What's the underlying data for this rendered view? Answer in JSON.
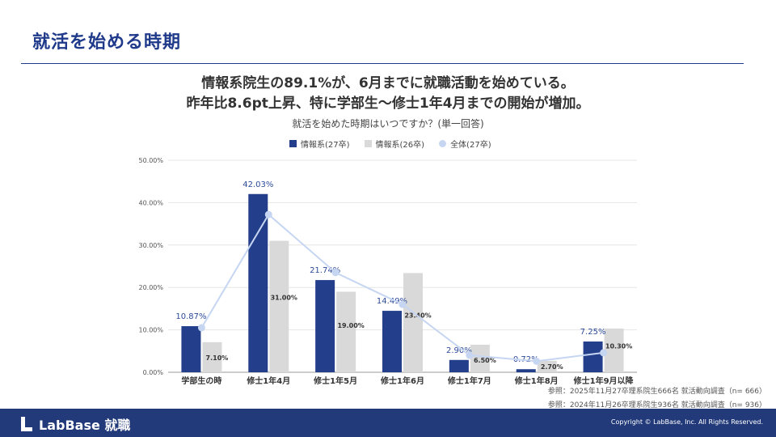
{
  "page": {
    "title": "就活を始める時期",
    "headline_1": "情報系院生の89.1%が、6月までに就職活動を始めている。",
    "headline_2": "昨年比8.6pt上昇、特に学部生〜修士1年4月までの開始が増加。"
  },
  "chart_data": {
    "type": "bar",
    "title": "就活を始めた時期はいつですか？(単一回答)",
    "categories": [
      "学部生の時",
      "修士1年4月",
      "修士1年5月",
      "修士1年6月",
      "修士1年7月",
      "修士1年8月",
      "修士1年9月以降"
    ],
    "y_ticks": [
      "0.00%",
      "10.00%",
      "20.00%",
      "30.00%",
      "40.00%",
      "50.00%"
    ],
    "ylim": [
      0,
      50
    ],
    "series": [
      {
        "name": "情報系(27卒)",
        "kind": "bar",
        "color": "#233e8b",
        "values": [
          10.87,
          42.03,
          21.74,
          14.49,
          2.9,
          0.72,
          7.25
        ],
        "labels": [
          "10.87%",
          "42.03%",
          "21.74%",
          "14.49%",
          "2.90%",
          "0.72%",
          "7.25%"
        ]
      },
      {
        "name": "情報系(26卒)",
        "kind": "bar",
        "color": "#d9d9d9",
        "values": [
          7.1,
          31.0,
          19.0,
          23.4,
          6.5,
          2.7,
          10.3
        ],
        "labels": [
          "7.10%",
          "31.00%",
          "19.00%",
          "23.40%",
          "6.50%",
          "2.70%",
          "10.30%"
        ]
      },
      {
        "name": "全体(27卒)",
        "kind": "line",
        "color": "#c6d6f2",
        "values": [
          10.5,
          37.2,
          23.5,
          16.0,
          4.0,
          2.6,
          4.6
        ]
      }
    ]
  },
  "notes": {
    "line_1": "参照：2025年11月27卒理系院生666名 就活動向調査（n= 666）",
    "line_2": "参照：2024年11月26卒理系院生936名 就活動向調査（n= 936）"
  },
  "footer": {
    "logo": "LabBase 就職",
    "copyright": "Copyright © LabBase, Inc. All Rights Reserved."
  }
}
